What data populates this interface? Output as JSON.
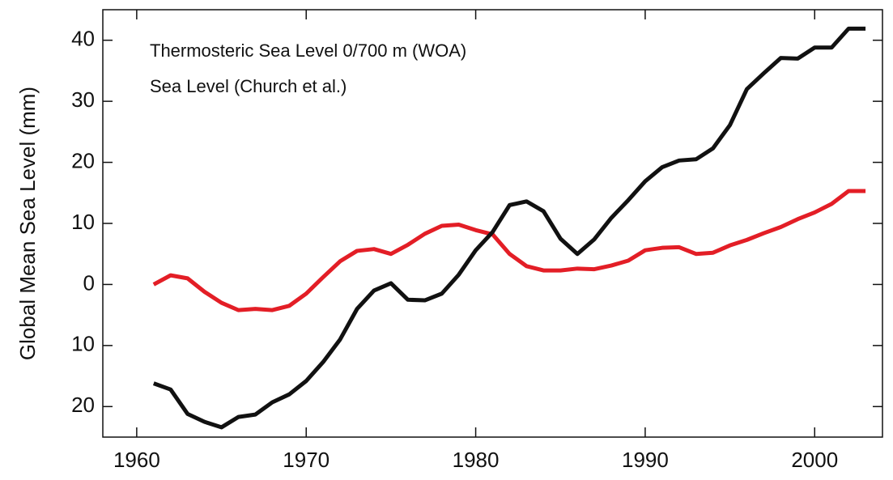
{
  "chart_data": {
    "type": "line",
    "y_label": "Global Mean Sea Level  (mm)",
    "x": [
      1961,
      1962,
      1963,
      1964,
      1965,
      1966,
      1967,
      1968,
      1969,
      1970,
      1971,
      1972,
      1973,
      1974,
      1975,
      1976,
      1977,
      1978,
      1979,
      1980,
      1981,
      1982,
      1983,
      1984,
      1985,
      1986,
      1987,
      1988,
      1989,
      1990,
      1991,
      1992,
      1993,
      1994,
      1995,
      1996,
      1997,
      1998,
      1999,
      2000,
      2001,
      2002,
      2003
    ],
    "series": [
      {
        "name": "Thermosteric Sea Level 0/700 m (WOA)",
        "color": "#e31e26",
        "values": [
          0,
          1.5,
          1,
          -1.2,
          -3,
          -4.2,
          -4,
          -4.2,
          -3.5,
          -1.5,
          1.2,
          3.8,
          5.5,
          5.8,
          5,
          6.5,
          8.3,
          9.6,
          9.8,
          8.9,
          8.2,
          5,
          3,
          2.3,
          2.3,
          2.6,
          2.5,
          3.1,
          3.9,
          5.6,
          6,
          6.1,
          5,
          5.2,
          6.4,
          7.3,
          8.4,
          9.4,
          10.7,
          11.8,
          13.2,
          15.3,
          15.3
        ]
      },
      {
        "name": "Sea Level (Church et al.)",
        "color": "#111111",
        "values": [
          -16.2,
          -17.2,
          -21.2,
          -22.5,
          -23.4,
          -21.7,
          -21.3,
          -19.3,
          -18,
          -15.8,
          -12.7,
          -9,
          -4,
          -1,
          0.2,
          -2.5,
          -2.6,
          -1.5,
          1.6,
          5.6,
          8.6,
          13,
          13.6,
          12,
          7.5,
          5,
          7.4,
          10.9,
          13.8,
          16.9,
          19.2,
          20.3,
          20.5,
          22.3,
          26.1,
          32,
          34.6,
          37.1,
          37,
          38.8,
          38.8,
          41.9,
          41.9
        ]
      }
    ],
    "xlim": [
      1958,
      2004
    ],
    "xticks": [
      1960,
      1970,
      1980,
      1990,
      2000
    ],
    "ylim": [
      -25,
      45
    ],
    "yticks": [
      40,
      30,
      20,
      10,
      0,
      {
        "value": -10,
        "label": "10"
      },
      {
        "value": -20,
        "label": "20"
      }
    ]
  }
}
